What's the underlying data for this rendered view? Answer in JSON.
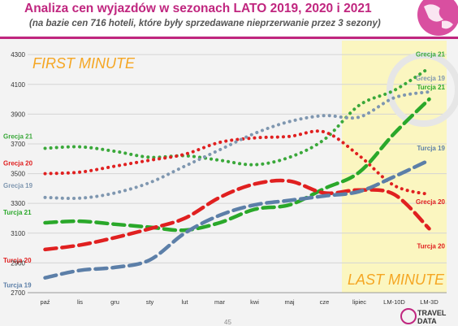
{
  "header": {
    "title": "Analiza cen wyjazdów w sezonach LATO 2019, 2020 i 2021",
    "subtitle": "(na bazie cen 716 hoteli, które były sprzedawane nieprzerwanie przez 3 sezony)"
  },
  "footer": {
    "page_number": "45",
    "logo_line1": "TRAVEL",
    "logo_line2": "DATA"
  },
  "colors": {
    "accent": "#c0267f",
    "highlight": "#fbf6c0",
    "label_orange": "#f5a623"
  },
  "chart_data": {
    "type": "line",
    "categories": [
      "paź",
      "lis",
      "gru",
      "sty",
      "lut",
      "mar",
      "kwi",
      "maj",
      "cze",
      "lipiec",
      "LM-10D",
      "LM-3D"
    ],
    "ylim": [
      2700,
      4350
    ],
    "yticks": [
      2700,
      2900,
      3100,
      3300,
      3500,
      3700,
      3900,
      4100,
      4300
    ],
    "grid": true,
    "xlabel": "",
    "ylabel": "",
    "annotations": {
      "first_minute": "FIRST MINUTE",
      "last_minute": "LAST MINUTE"
    },
    "highlight_from": "lipiec",
    "series": [
      {
        "name": "Grecja 21",
        "label_start": "Grecja 21",
        "label_end": "Grecja 21",
        "color": "#3aa83a",
        "style": "dotted",
        "values": [
          3670,
          3680,
          3650,
          3610,
          3620,
          3590,
          3560,
          3610,
          3730,
          3960,
          4060,
          4210
        ]
      },
      {
        "name": "Grecja 20",
        "label_start": "Grecja 20",
        "label_end": "Grecja 20",
        "color": "#e02020",
        "style": "dotted",
        "values": [
          3500,
          3510,
          3550,
          3590,
          3630,
          3710,
          3740,
          3750,
          3780,
          3620,
          3420,
          3360
        ]
      },
      {
        "name": "Grecja 19",
        "label_start": "Grecja 19",
        "label_end": "Grecja 19",
        "color": "#7f97b0",
        "style": "dotted",
        "values": [
          3340,
          3335,
          3370,
          3440,
          3550,
          3660,
          3770,
          3850,
          3890,
          3880,
          4010,
          4050
        ]
      },
      {
        "name": "Turcja 21",
        "label_start": "Turcja 21",
        "label_end": "Turcja 21",
        "color": "#2aa82a",
        "style": "dashed",
        "values": [
          3170,
          3180,
          3160,
          3140,
          3120,
          3170,
          3260,
          3290,
          3400,
          3510,
          3770,
          4000
        ]
      },
      {
        "name": "Turcja 20",
        "label_start": "Turcja 20",
        "label_end": "Turcja 20",
        "color": "#e02020",
        "style": "dashed",
        "values": [
          2990,
          3020,
          3070,
          3130,
          3200,
          3340,
          3430,
          3450,
          3370,
          3390,
          3360,
          3130
        ]
      },
      {
        "name": "Turcja 19",
        "label_start": "Turcja 19",
        "label_end": "Turcja 19",
        "color": "#5c7fa8",
        "style": "dashed",
        "values": [
          2800,
          2850,
          2870,
          2920,
          3100,
          3220,
          3290,
          3320,
          3350,
          3380,
          3480,
          3590
        ]
      }
    ]
  }
}
